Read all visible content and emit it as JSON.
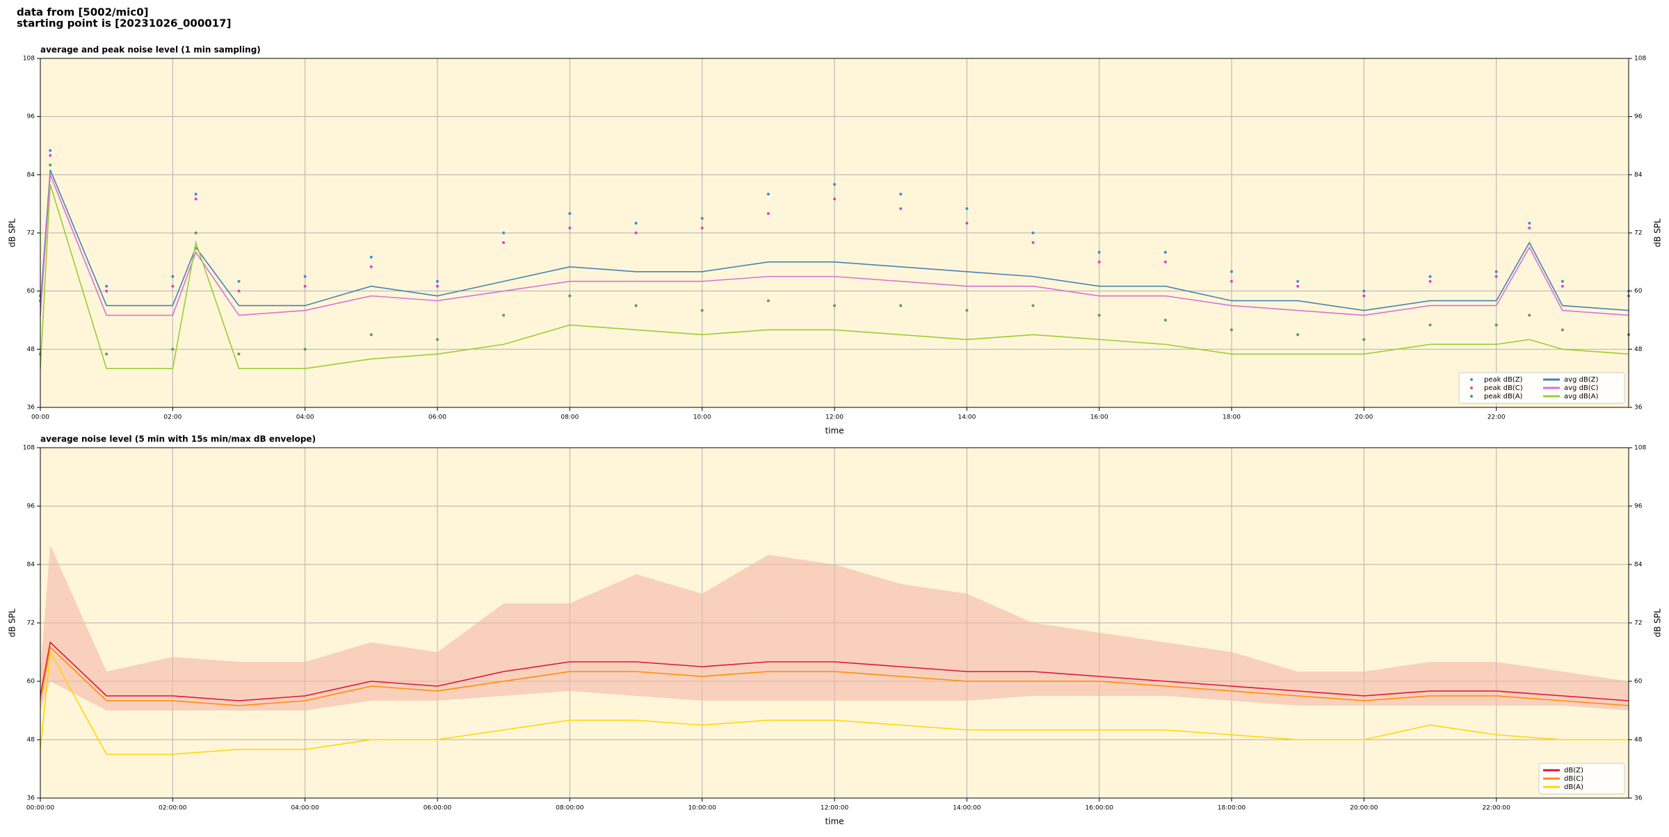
{
  "header": {
    "line1": "data from [5002/mic0]",
    "line2": "starting point is [20231026_000017]"
  },
  "chart_data": [
    {
      "type": "line",
      "title": "average and peak noise level (1 min sampling)",
      "xlabel": "time",
      "ylabel": "dB SPL",
      "background": "#fff6d9",
      "grid": true,
      "legend": "lower right",
      "legend_columns": 2,
      "xlim": [
        0,
        24
      ],
      "ylim": [
        36,
        108
      ],
      "yticks": [
        36,
        48,
        60,
        72,
        84,
        96,
        108
      ],
      "xticks": [
        {
          "value": 0,
          "label": "00:00"
        },
        {
          "value": 2,
          "label": "02:00"
        },
        {
          "value": 4,
          "label": "04:00"
        },
        {
          "value": 6,
          "label": "06:00"
        },
        {
          "value": 8,
          "label": "08:00"
        },
        {
          "value": 10,
          "label": "10:00"
        },
        {
          "value": 12,
          "label": "12:00"
        },
        {
          "value": 14,
          "label": "14:00"
        },
        {
          "value": 16,
          "label": "16:00"
        },
        {
          "value": 18,
          "label": "18:00"
        },
        {
          "value": 20,
          "label": "20:00"
        },
        {
          "value": 22,
          "label": "22:00"
        }
      ],
      "x": [
        0,
        0.15,
        1,
        2,
        2.35,
        3,
        4,
        5,
        6,
        7,
        8,
        9,
        10,
        11,
        12,
        13,
        14,
        15,
        16,
        17,
        18,
        19,
        20,
        21,
        22,
        22.5,
        23,
        24
      ],
      "series": [
        {
          "name": "peak dB(Z)",
          "kind": "scatter",
          "color": "#3a8fd6",
          "values": [
            59,
            89,
            61,
            63,
            80,
            62,
            63,
            67,
            62,
            72,
            76,
            74,
            75,
            80,
            82,
            80,
            77,
            72,
            68,
            68,
            64,
            62,
            60,
            63,
            64,
            74,
            62,
            60
          ]
        },
        {
          "name": "peak dB(C)",
          "kind": "scatter",
          "color": "#e040c8",
          "values": [
            58,
            88,
            60,
            61,
            79,
            60,
            61,
            65,
            61,
            70,
            73,
            72,
            73,
            76,
            79,
            77,
            74,
            70,
            66,
            66,
            62,
            61,
            59,
            62,
            63,
            73,
            61,
            59
          ]
        },
        {
          "name": "peak dB(A)",
          "kind": "scatter",
          "color": "#5a9a5a",
          "values": [
            47,
            86,
            47,
            48,
            72,
            47,
            48,
            51,
            50,
            55,
            59,
            57,
            56,
            58,
            57,
            57,
            56,
            57,
            55,
            54,
            52,
            51,
            50,
            53,
            53,
            55,
            52,
            51
          ]
        },
        {
          "name": "avg dB(Z)",
          "kind": "line",
          "color": "#4682b4",
          "values": [
            57,
            85,
            57,
            57,
            69,
            57,
            57,
            61,
            59,
            62,
            65,
            64,
            64,
            66,
            66,
            65,
            64,
            63,
            61,
            61,
            58,
            58,
            56,
            58,
            58,
            70,
            57,
            56
          ]
        },
        {
          "name": "avg dB(C)",
          "kind": "line",
          "color": "#da70d6",
          "values": [
            55,
            84,
            55,
            55,
            68,
            55,
            56,
            59,
            58,
            60,
            62,
            62,
            62,
            63,
            63,
            62,
            61,
            61,
            59,
            59,
            57,
            56,
            55,
            57,
            57,
            69,
            56,
            55
          ]
        },
        {
          "name": "avg dB(A)",
          "kind": "line",
          "color": "#9acd32",
          "values": [
            44,
            82,
            44,
            44,
            70,
            44,
            44,
            46,
            47,
            49,
            53,
            52,
            51,
            52,
            52,
            51,
            50,
            51,
            50,
            49,
            47,
            47,
            47,
            49,
            49,
            50,
            48,
            47
          ]
        }
      ]
    },
    {
      "type": "line",
      "title": "average noise level (5 min with 15s min/max dB envelope)",
      "xlabel": "time",
      "ylabel": "dB SPL",
      "background": "#fff6d9",
      "grid": true,
      "legend": "lower right",
      "legend_columns": 1,
      "xlim": [
        0,
        24
      ],
      "ylim": [
        36,
        108
      ],
      "yticks": [
        36,
        48,
        60,
        72,
        84,
        96,
        108
      ],
      "xticks": [
        {
          "value": 0,
          "label": "00:00:00"
        },
        {
          "value": 2,
          "label": "02:00:00"
        },
        {
          "value": 4,
          "label": "04:00:00"
        },
        {
          "value": 6,
          "label": "06:00:00"
        },
        {
          "value": 8,
          "label": "08:00:00"
        },
        {
          "value": 10,
          "label": "10:00:00"
        },
        {
          "value": 12,
          "label": "12:00:00"
        },
        {
          "value": 14,
          "label": "14:00:00"
        },
        {
          "value": 16,
          "label": "16:00:00"
        },
        {
          "value": 18,
          "label": "18:00:00"
        },
        {
          "value": 20,
          "label": "20:00:00"
        },
        {
          "value": 22,
          "label": "22:00:00"
        }
      ],
      "x": [
        0,
        0.15,
        1,
        2,
        3,
        4,
        5,
        6,
        7,
        8,
        9,
        10,
        11,
        12,
        13,
        14,
        15,
        16,
        17,
        18,
        19,
        20,
        21,
        22,
        23,
        24
      ],
      "envelope": {
        "color": "#f4b8a8",
        "min": [
          54,
          60,
          54,
          54,
          54,
          54,
          56,
          56,
          57,
          58,
          57,
          56,
          56,
          56,
          56,
          56,
          57,
          57,
          57,
          56,
          55,
          55,
          55,
          55,
          55,
          54
        ],
        "max": [
          62,
          88,
          62,
          65,
          64,
          64,
          68,
          66,
          76,
          76,
          82,
          78,
          86,
          84,
          80,
          78,
          72,
          70,
          68,
          66,
          62,
          62,
          64,
          64,
          62,
          60
        ]
      },
      "series": [
        {
          "name": "dB(Z)",
          "kind": "line",
          "color": "#dc143c",
          "values": [
            57,
            68,
            57,
            57,
            56,
            57,
            60,
            59,
            62,
            64,
            64,
            63,
            64,
            64,
            63,
            62,
            62,
            61,
            60,
            59,
            58,
            57,
            58,
            58,
            57,
            56
          ]
        },
        {
          "name": "dB(C)",
          "kind": "line",
          "color": "#ff8c00",
          "values": [
            56,
            67,
            56,
            56,
            55,
            56,
            59,
            58,
            60,
            62,
            62,
            61,
            62,
            62,
            61,
            60,
            60,
            60,
            59,
            58,
            57,
            56,
            57,
            57,
            56,
            55
          ]
        },
        {
          "name": "dB(A)",
          "kind": "line",
          "color": "#ffd700",
          "values": [
            46,
            66,
            45,
            45,
            46,
            46,
            48,
            48,
            50,
            52,
            52,
            51,
            52,
            52,
            51,
            50,
            50,
            50,
            50,
            49,
            48,
            48,
            51,
            49,
            48,
            48
          ]
        }
      ]
    }
  ]
}
